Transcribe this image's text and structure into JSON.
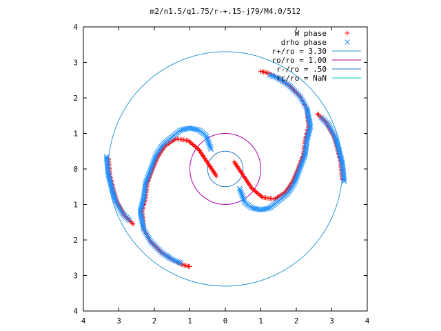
{
  "chart_data": {
    "type": "scatter",
    "title": "m2/n1.5/q1.75/r-+.15-j79/M4.0/512",
    "xlim": [
      -4,
      4
    ],
    "ylim": [
      -4,
      4
    ],
    "x_ticks": [
      -4,
      -3,
      -2,
      -1,
      0,
      1,
      2,
      3,
      4
    ],
    "y_ticks": [
      -4,
      -3,
      -2,
      -1,
      0,
      1,
      2,
      3,
      4
    ],
    "x_tick_labels": [
      "4",
      "3",
      "2",
      "1",
      "0",
      "1",
      "2",
      "3",
      "4"
    ],
    "y_tick_labels": [
      "4",
      "3",
      "2",
      "1",
      "0",
      "1",
      "2",
      "3",
      "4"
    ],
    "grid": false,
    "legend_position": "top-right",
    "legend": [
      {
        "label": "W phase",
        "kind": "marker",
        "marker": "plus",
        "color": "#ff0000"
      },
      {
        "label": "drho phase",
        "kind": "marker",
        "marker": "x",
        "color": "#1e90ff"
      },
      {
        "label": "r+/ro = 3.30",
        "kind": "line",
        "color": "#2a9bd8"
      },
      {
        "label": "ro/ro = 1.00",
        "kind": "line",
        "color": "#b000b0"
      },
      {
        "label": "r-/ro = .50",
        "kind": "line",
        "color": "#1a78c8"
      },
      {
        "label": "rc/ro = NaN",
        "kind": "line",
        "color": "#00cccc"
      }
    ],
    "circles": [
      {
        "name": "r+/ro",
        "r": 3.3,
        "color": "#2a9bd8"
      },
      {
        "name": "ro/ro",
        "r": 1.0,
        "color": "#b000b0"
      },
      {
        "name": "r-/ro",
        "r": 0.5,
        "color": "#1a78c8"
      }
    ],
    "center_marker": {
      "x": 0,
      "y": 0
    },
    "series": [
      {
        "name": "W phase",
        "marker": "plus",
        "color": "#ff0000",
        "arms": [
          [
            [
              -0.25,
              -0.2
            ],
            [
              -0.45,
              0.1
            ],
            [
              -0.75,
              0.55
            ],
            [
              -1.05,
              0.8
            ],
            [
              -1.4,
              0.85
            ],
            [
              -1.7,
              0.65
            ],
            [
              -1.9,
              0.35
            ],
            [
              -2.05,
              0.0
            ],
            [
              -2.2,
              -0.4
            ],
            [
              -2.25,
              -0.8
            ],
            [
              -2.35,
              -1.2
            ],
            [
              -2.3,
              -1.7
            ],
            [
              -2.1,
              -2.05
            ],
            [
              -1.8,
              -2.35
            ],
            [
              -1.5,
              -2.55
            ],
            [
              -1.2,
              -2.7
            ],
            [
              -1.0,
              -2.75
            ]
          ],
          [
            [
              0.25,
              0.2
            ],
            [
              0.45,
              -0.1
            ],
            [
              0.75,
              -0.55
            ],
            [
              1.05,
              -0.8
            ],
            [
              1.4,
              -0.85
            ],
            [
              1.7,
              -0.65
            ],
            [
              1.9,
              -0.35
            ],
            [
              2.05,
              0.0
            ],
            [
              2.2,
              0.4
            ],
            [
              2.25,
              0.8
            ],
            [
              2.35,
              1.2
            ],
            [
              2.3,
              1.7
            ],
            [
              2.1,
              2.05
            ],
            [
              1.8,
              2.35
            ],
            [
              1.5,
              2.55
            ],
            [
              1.2,
              2.7
            ],
            [
              1.0,
              2.75
            ]
          ],
          [
            [
              -3.3,
              0.3
            ],
            [
              -3.25,
              -0.2
            ],
            [
              -3.15,
              -0.6
            ],
            [
              -3.05,
              -0.95
            ],
            [
              -2.85,
              -1.3
            ],
            [
              -2.6,
              -1.55
            ]
          ],
          [
            [
              3.3,
              -0.3
            ],
            [
              3.25,
              0.2
            ],
            [
              3.15,
              0.6
            ],
            [
              3.05,
              0.95
            ],
            [
              2.85,
              1.3
            ],
            [
              2.6,
              1.55
            ]
          ]
        ]
      },
      {
        "name": "drho phase",
        "marker": "x",
        "color": "#1e90ff",
        "arms": [
          [
            [
              -0.4,
              0.55
            ],
            [
              -0.55,
              0.95
            ],
            [
              -0.75,
              1.1
            ],
            [
              -1.0,
              1.15
            ],
            [
              -1.25,
              1.1
            ],
            [
              -1.5,
              0.9
            ],
            [
              -1.75,
              0.7
            ],
            [
              -1.95,
              0.4
            ],
            [
              -2.1,
              0.0
            ],
            [
              -2.25,
              -0.4
            ],
            [
              -2.3,
              -0.8
            ],
            [
              -2.4,
              -1.2
            ],
            [
              -2.3,
              -1.7
            ],
            [
              -2.1,
              -2.05
            ],
            [
              -1.8,
              -2.35
            ],
            [
              -1.5,
              -2.55
            ],
            [
              -1.25,
              -2.65
            ]
          ],
          [
            [
              0.4,
              -0.55
            ],
            [
              0.55,
              -0.95
            ],
            [
              0.75,
              -1.1
            ],
            [
              1.0,
              -1.15
            ],
            [
              1.25,
              -1.1
            ],
            [
              1.5,
              -0.9
            ],
            [
              1.75,
              -0.7
            ],
            [
              1.95,
              -0.4
            ],
            [
              2.1,
              0.0
            ],
            [
              2.25,
              0.4
            ],
            [
              2.3,
              0.8
            ],
            [
              2.4,
              1.2
            ],
            [
              2.3,
              1.7
            ],
            [
              2.1,
              2.05
            ],
            [
              1.8,
              2.35
            ],
            [
              1.5,
              2.55
            ],
            [
              1.25,
              2.65
            ]
          ],
          [
            [
              -3.35,
              0.35
            ],
            [
              -3.3,
              -0.15
            ],
            [
              -3.2,
              -0.55
            ],
            [
              -3.1,
              -0.9
            ],
            [
              -2.9,
              -1.25
            ],
            [
              -2.7,
              -1.45
            ]
          ],
          [
            [
              3.35,
              -0.35
            ],
            [
              3.3,
              0.15
            ],
            [
              3.2,
              0.55
            ],
            [
              3.1,
              0.9
            ],
            [
              2.9,
              1.25
            ],
            [
              2.7,
              1.45
            ]
          ]
        ]
      }
    ]
  }
}
